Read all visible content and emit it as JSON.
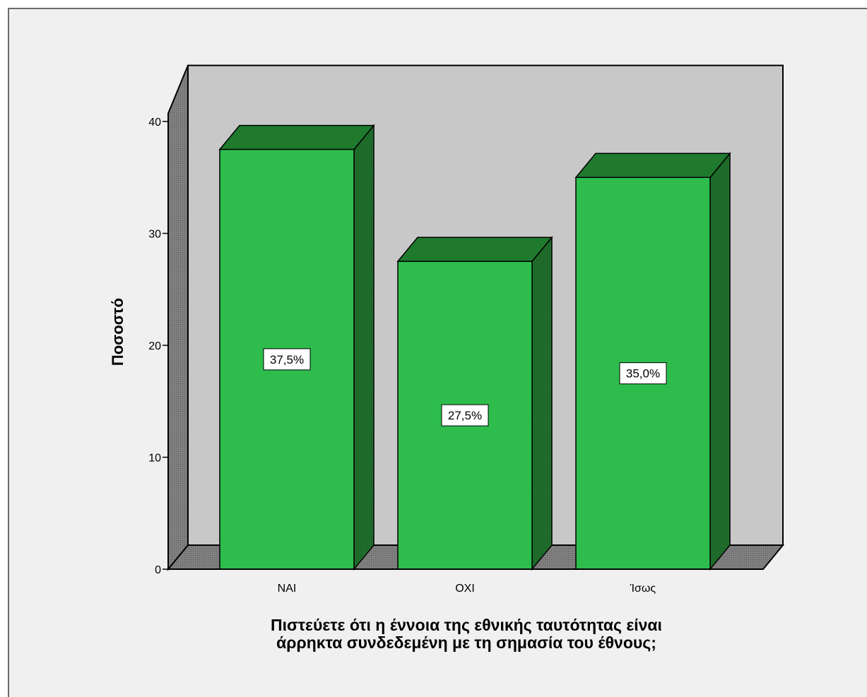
{
  "chart_data": {
    "type": "bar",
    "categories": [
      "NAI",
      "OXI",
      "Ίσως"
    ],
    "values": [
      37.5,
      27.5,
      35.0
    ],
    "data_labels": [
      "37,5%",
      "27,5%",
      "35,0%"
    ],
    "ylabel": "Ποσοστό",
    "xlabel_lines": [
      "Πιστεύετε ότι η έννοια της εθνικής ταυτότητας είναι",
      "άρρηκτα συνδεδεμένη με τη σημασία του έθνους;"
    ],
    "ylim": [
      0,
      44
    ],
    "yticks": [
      0,
      10,
      20,
      30,
      40
    ],
    "ytick_labels": [
      "0",
      "10",
      "20",
      "30",
      "40"
    ],
    "grid": false,
    "style": "3d",
    "colors": {
      "bar_front": "#2ebd4d",
      "bar_side": "#1e6b2a",
      "bar_top": "#1f7a2e",
      "wall_back": "#c8c8c8",
      "wall_side": "#7a7a7a",
      "floor": "#7f7f7f",
      "background": "#f0f0f0"
    }
  }
}
